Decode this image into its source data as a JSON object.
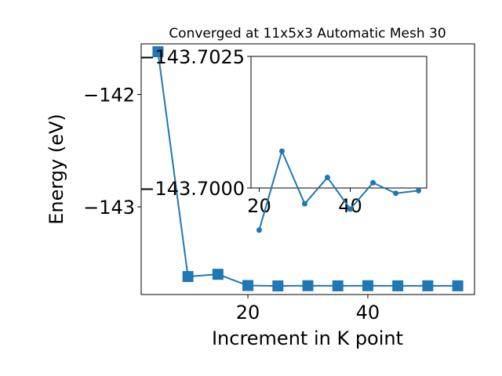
{
  "chart_data": [
    {
      "type": "line",
      "title": "Converged at 11x5x3 Automatic Mesh 30",
      "xlabel": "Increment in K point",
      "ylabel": "Energy (eV)",
      "x": [
        5,
        10,
        15,
        20,
        25,
        30,
        35,
        40,
        45,
        50,
        55
      ],
      "series": [
        {
          "values": [
            -141.62,
            -143.62,
            -143.6,
            -143.7,
            -143.7033,
            -143.7015,
            -143.7028,
            -143.7013,
            -143.7027,
            -143.7024,
            -143.7025
          ]
        }
      ],
      "xlim": [
        2.2,
        57.8
      ],
      "ylim": [
        -143.78,
        -141.55
      ],
      "xticks": [
        20,
        40
      ],
      "yticks": [
        {
          "value": -142,
          "label": "−142"
        },
        {
          "value": -143,
          "label": "−143"
        }
      ],
      "marker": "square",
      "color": "#1f77b4",
      "grid": false
    },
    {
      "type": "line",
      "title": "",
      "xlabel": "",
      "ylabel": "",
      "x": [
        20,
        25,
        30,
        35,
        40,
        45,
        50,
        55
      ],
      "series": [
        {
          "values": [
            -143.6992,
            -143.7007,
            -143.6997,
            -143.7002,
            -143.6996,
            -143.7001,
            -143.6999,
            -143.69995
          ]
        }
      ],
      "xlim": [
        18.2,
        56.8
      ],
      "ylim": [
        -143.7,
        -143.7025
      ],
      "y_inverted": true,
      "xticks": [
        20,
        40
      ],
      "yticks": [
        {
          "value": -143.7025,
          "label": "−143.7025"
        },
        {
          "value": -143.7,
          "label": "−143.7000"
        }
      ],
      "marker": "circle",
      "color": "#1f77b4",
      "grid": false
    }
  ]
}
